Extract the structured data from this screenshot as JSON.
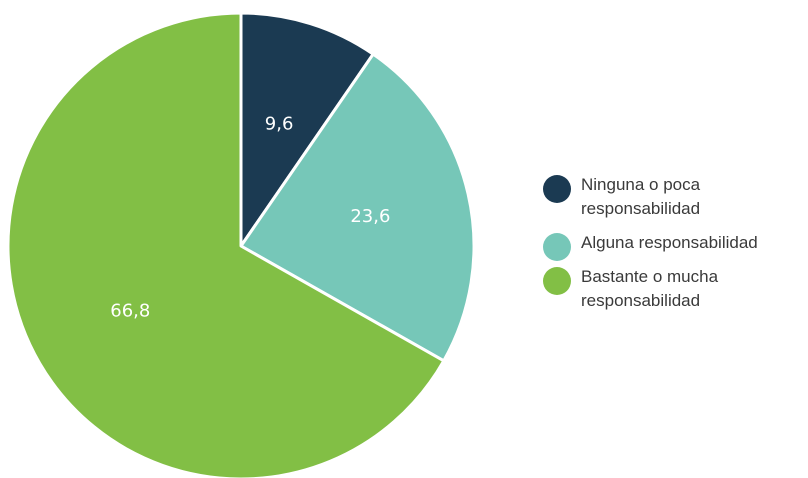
{
  "chart_data": {
    "type": "pie",
    "series": [
      {
        "name": "Ninguna o poca responsabilidad",
        "value": 9.6,
        "label": "9,6",
        "color": "#1b3a52"
      },
      {
        "name": "Alguna responsabilidad",
        "value": 23.6,
        "label": "23,6",
        "color": "#76c7b8"
      },
      {
        "name": "Bastante o mucha responsabilidad",
        "value": 66.8,
        "label": "66,8",
        "color": "#82bf45"
      }
    ],
    "start_angle": "12 o'clock",
    "direction": "clockwise",
    "legend_position": "right"
  },
  "legend": {
    "items": [
      {
        "line1": "Ninguna o poca",
        "line2": "responsabilidad"
      },
      {
        "line1": "Alguna responsabilidad",
        "line2": ""
      },
      {
        "line1": "Bastante o mucha",
        "line2": "responsabilidad"
      }
    ]
  }
}
